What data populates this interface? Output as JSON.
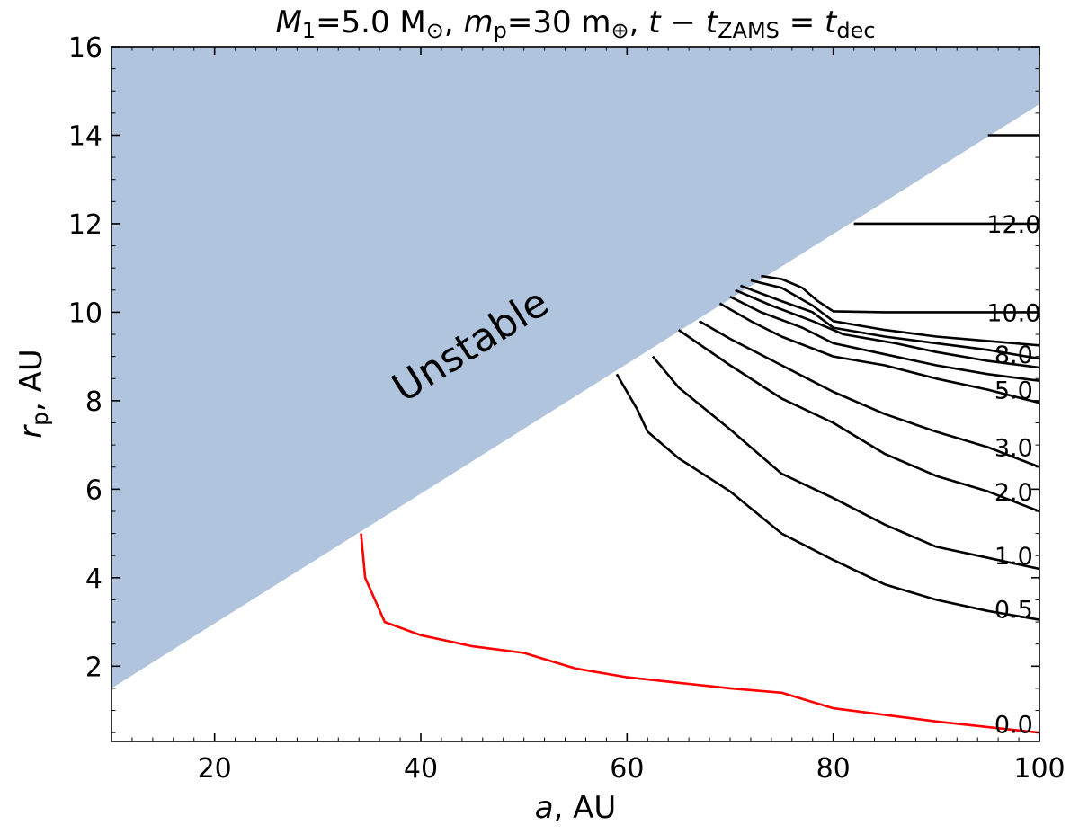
{
  "chart_data": {
    "type": "line",
    "title": {
      "lead": "M",
      "lead_sub": "1",
      "mass_text": "=5.0 M",
      "sun_symbol": "⊙",
      "sep1": ", ",
      "mp": "m",
      "mp_sub": "p",
      "mp_text": "=30 m",
      "earth_symbol": "⊕",
      "sep2": ", ",
      "t": "t",
      "minus": " − ",
      "t2": "t",
      "t2_sub": "ZAMS",
      "eq": " = ",
      "t3": "t",
      "t3_sub": "dec"
    },
    "xlabel": {
      "var": "a",
      "unit": ", AU"
    },
    "ylabel": {
      "var": "r",
      "sub": "p",
      "unit": ", AU"
    },
    "xlim": [
      10,
      100
    ],
    "ylim": [
      0.3,
      16
    ],
    "x_ticks": [
      20,
      40,
      60,
      80,
      100
    ],
    "y_ticks": [
      2,
      4,
      6,
      8,
      10,
      12,
      14,
      16
    ],
    "x_minor_step": 2,
    "y_minor_step": 0.5,
    "grid": false,
    "unstable_region": {
      "label": "Unstable",
      "color": "#b0c4de",
      "boundary": [
        [
          10,
          1.5
        ],
        [
          100,
          14.7
        ]
      ]
    },
    "contours": [
      {
        "label": "0.0",
        "color": "#ff0000",
        "label_at": [
          97.5,
          0.7
        ],
        "points": [
          [
            34.2,
            5.0
          ],
          [
            34.6,
            4.0
          ],
          [
            36.5,
            3.0
          ],
          [
            40,
            2.7
          ],
          [
            45,
            2.45
          ],
          [
            50,
            2.3
          ],
          [
            55,
            1.95
          ],
          [
            60,
            1.75
          ],
          [
            70,
            1.5
          ],
          [
            75,
            1.4
          ],
          [
            80,
            1.05
          ],
          [
            90,
            0.75
          ],
          [
            100,
            0.5
          ]
        ]
      },
      {
        "label": "0.5",
        "color": "#000000",
        "label_at": [
          97.5,
          3.3
        ],
        "points": [
          [
            59.0,
            8.6
          ],
          [
            61,
            7.8
          ],
          [
            62,
            7.3
          ],
          [
            65,
            6.7
          ],
          [
            70,
            5.95
          ],
          [
            75,
            5.0
          ],
          [
            80,
            4.4
          ],
          [
            85,
            3.85
          ],
          [
            90,
            3.5
          ],
          [
            95,
            3.25
          ],
          [
            100,
            3.05
          ]
        ]
      },
      {
        "label": "1.0",
        "color": "#000000",
        "label_at": [
          97.5,
          4.5
        ],
        "points": [
          [
            62.5,
            9.0
          ],
          [
            65,
            8.3
          ],
          [
            70,
            7.35
          ],
          [
            75,
            6.35
          ],
          [
            80,
            5.8
          ],
          [
            85,
            5.2
          ],
          [
            90,
            4.7
          ],
          [
            95,
            4.45
          ],
          [
            100,
            4.2
          ]
        ]
      },
      {
        "label": "2.0",
        "color": "#000000",
        "label_at": [
          97.5,
          5.95
        ],
        "points": [
          [
            65,
            9.6
          ],
          [
            70,
            8.8
          ],
          [
            75,
            8.05
          ],
          [
            80,
            7.5
          ],
          [
            85,
            6.8
          ],
          [
            90,
            6.3
          ],
          [
            95,
            5.95
          ],
          [
            100,
            5.5
          ]
        ]
      },
      {
        "label": "3.0",
        "color": "#000000",
        "label_at": [
          97.5,
          6.95
        ],
        "points": [
          [
            67,
            9.8
          ],
          [
            70,
            9.4
          ],
          [
            75,
            8.8
          ],
          [
            80,
            8.2
          ],
          [
            85,
            7.7
          ],
          [
            90,
            7.3
          ],
          [
            95,
            6.95
          ],
          [
            100,
            6.5
          ]
        ]
      },
      {
        "label": "5.0",
        "color": "#000000",
        "label_at": [
          97.5,
          8.25
        ],
        "points": [
          [
            69,
            10.2
          ],
          [
            72,
            9.8
          ],
          [
            75,
            9.45
          ],
          [
            80,
            9.0
          ],
          [
            85,
            8.8
          ],
          [
            90,
            8.5
          ],
          [
            95,
            8.25
          ],
          [
            100,
            7.95
          ]
        ]
      },
      {
        "label": "",
        "color": "#000000",
        "points": [
          [
            70,
            10.35
          ],
          [
            73,
            10.0
          ],
          [
            77,
            9.65
          ],
          [
            80,
            9.3
          ],
          [
            85,
            9.05
          ],
          [
            90,
            8.8
          ],
          [
            95,
            8.6
          ],
          [
            100,
            8.45
          ]
        ]
      },
      {
        "label": "",
        "color": "#000000",
        "points": [
          [
            70.5,
            10.5
          ],
          [
            74,
            10.15
          ],
          [
            78,
            9.8
          ],
          [
            81,
            9.5
          ],
          [
            86,
            9.3
          ],
          [
            90,
            9.1
          ],
          [
            95,
            8.9
          ],
          [
            100,
            8.75
          ]
        ]
      },
      {
        "label": "8.0",
        "color": "#000000",
        "label_at": [
          97.5,
          9.05
        ],
        "points": [
          [
            71,
            10.6
          ],
          [
            75,
            10.25
          ],
          [
            78,
            10.0
          ],
          [
            80,
            9.65
          ],
          [
            85,
            9.45
          ],
          [
            90,
            9.3
          ],
          [
            95,
            9.15
          ],
          [
            100,
            8.95
          ]
        ]
      },
      {
        "label": "",
        "color": "#000000",
        "points": [
          [
            72,
            10.72
          ],
          [
            75,
            10.55
          ],
          [
            78,
            10.15
          ],
          [
            80,
            9.8
          ],
          [
            85,
            9.6
          ],
          [
            90,
            9.45
          ],
          [
            95,
            9.35
          ],
          [
            100,
            9.25
          ]
        ]
      },
      {
        "label": "10.0",
        "color": "#000000",
        "label_at": [
          97.5,
          10.0
        ],
        "points": [
          [
            73,
            10.82
          ],
          [
            75,
            10.75
          ],
          [
            77,
            10.55
          ],
          [
            78.5,
            10.25
          ],
          [
            80,
            10.02
          ],
          [
            85,
            10.0
          ],
          [
            90,
            10.0
          ],
          [
            95,
            10.0
          ],
          [
            100,
            10.0
          ]
        ]
      },
      {
        "label": "12.0",
        "color": "#000000",
        "label_at": [
          97.5,
          12.0
        ],
        "points": [
          [
            82,
            12.0
          ],
          [
            100,
            12.0
          ]
        ]
      },
      {
        "label": "",
        "color": "#000000",
        "points": [
          [
            95,
            14.0
          ],
          [
            100,
            14.0
          ]
        ]
      }
    ]
  }
}
